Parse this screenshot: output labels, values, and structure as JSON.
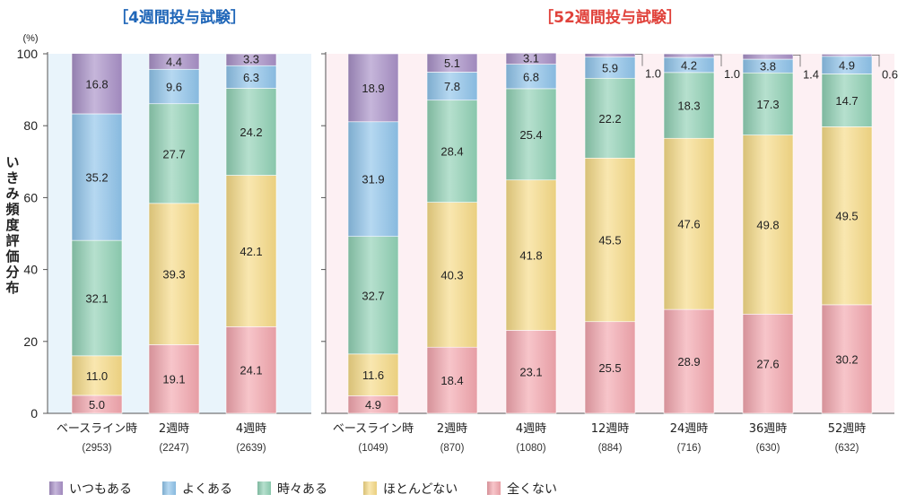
{
  "chart_data": {
    "type": "bar",
    "stacked": true,
    "ylabel": "いきみ頻度評価分布",
    "yunit": "(%)",
    "ylim": [
      0,
      100
    ],
    "yticks": [
      0,
      20,
      40,
      60,
      80,
      100
    ],
    "legend": [
      {
        "name": "いつもある",
        "color": "#a78fc6"
      },
      {
        "name": "よくある",
        "color": "#8ec3ea"
      },
      {
        "name": "時々ある",
        "color": "#8fd0b4"
      },
      {
        "name": "ほとんどない",
        "color": "#f6da86"
      },
      {
        "name": "全くない",
        "color": "#f2a5ad"
      }
    ],
    "panels": [
      {
        "title": "［4週間投与試験］",
        "title_color": "#1f66b8",
        "bg_color": "#e9f4fb",
        "categories": [
          {
            "label": "ベースライン時",
            "n": "(2953)",
            "values": [
              16.8,
              35.2,
              32.1,
              11.0,
              5.0
            ],
            "labels": [
              "16.8",
              "35.2",
              "32.1",
              "11.0",
              "5.0"
            ]
          },
          {
            "label": "2週時",
            "n": "(2247)",
            "values": [
              4.4,
              9.6,
              27.7,
              39.3,
              19.1
            ],
            "labels": [
              "4.4",
              "9.6",
              "27.7",
              "39.3",
              "19.1"
            ]
          },
          {
            "label": "4週時",
            "n": "(2639)",
            "values": [
              3.3,
              6.3,
              24.2,
              42.1,
              24.1
            ],
            "labels": [
              "3.3",
              "6.3",
              "24.2",
              "42.1",
              "24.1"
            ]
          }
        ]
      },
      {
        "title": "［52週間投与試験］",
        "title_color": "#e0413a",
        "bg_color": "#fdf0f3",
        "categories": [
          {
            "label": "ベースライン時",
            "n": "(1049)",
            "values": [
              18.9,
              31.9,
              32.7,
              11.6,
              4.9
            ],
            "labels": [
              "18.9",
              "31.9",
              "32.7",
              "11.6",
              "4.9"
            ]
          },
          {
            "label": "2週時",
            "n": "(870)",
            "values": [
              5.1,
              7.8,
              28.4,
              40.3,
              18.4
            ],
            "labels": [
              "5.1",
              "7.8",
              "28.4",
              "40.3",
              "18.4"
            ]
          },
          {
            "label": "4週時",
            "n": "(1080)",
            "values": [
              3.1,
              6.8,
              25.4,
              41.8,
              23.1
            ],
            "labels": [
              "3.1",
              "6.8",
              "25.4",
              "41.8",
              "23.1"
            ]
          },
          {
            "label": "12週時",
            "n": "(884)",
            "values": [
              1.0,
              5.9,
              22.2,
              45.5,
              25.5
            ],
            "labels": [
              "1.0",
              "5.9",
              "22.2",
              "45.5",
              "25.5"
            ],
            "callout": "1.0"
          },
          {
            "label": "24週時",
            "n": "(716)",
            "values": [
              1.0,
              4.2,
              18.3,
              47.6,
              28.9
            ],
            "labels": [
              "1.0",
              "4.2",
              "18.3",
              "47.6",
              "28.9"
            ],
            "callout": "1.0"
          },
          {
            "label": "36週時",
            "n": "(630)",
            "values": [
              1.4,
              3.8,
              17.3,
              49.8,
              27.6
            ],
            "labels": [
              "1.4",
              "3.8",
              "17.3",
              "49.8",
              "27.6"
            ],
            "callout": "1.4"
          },
          {
            "label": "52週時",
            "n": "(632)",
            "values": [
              0.6,
              4.9,
              14.7,
              49.5,
              30.2
            ],
            "labels": [
              "0.6",
              "4.9",
              "14.7",
              "49.5",
              "30.2"
            ],
            "callout": "0.6"
          }
        ]
      }
    ]
  }
}
